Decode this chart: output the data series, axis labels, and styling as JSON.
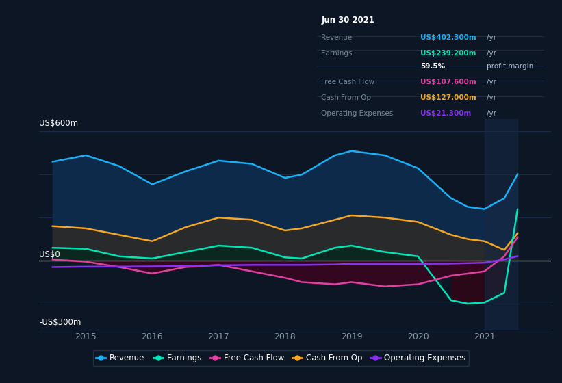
{
  "bg_color": "#0c1624",
  "plot_bg_color": "#0c1624",
  "ylabel_top": "US$600m",
  "ylabel_zero": "US$0",
  "ylabel_bottom": "-US$300m",
  "ylim": [
    -320,
    660
  ],
  "xlim": [
    2014.3,
    2022.0
  ],
  "xticks": [
    2015,
    2016,
    2017,
    2018,
    2019,
    2020,
    2021
  ],
  "colors": {
    "revenue": "#1ab0f5",
    "earnings": "#00e5b8",
    "free_cash_flow": "#e040a0",
    "cash_from_op": "#f5a623",
    "operating_expenses": "#8833ee"
  },
  "x": [
    2014.5,
    2015.0,
    2015.5,
    2016.0,
    2016.5,
    2017.0,
    2017.5,
    2018.0,
    2018.25,
    2018.75,
    2019.0,
    2019.5,
    2020.0,
    2020.5,
    2020.75,
    2021.0,
    2021.3,
    2021.5
  ],
  "revenue": [
    460,
    490,
    440,
    355,
    415,
    465,
    450,
    385,
    400,
    490,
    510,
    490,
    430,
    290,
    250,
    240,
    290,
    402
  ],
  "earnings": [
    60,
    55,
    20,
    10,
    40,
    70,
    60,
    15,
    10,
    60,
    70,
    40,
    20,
    -185,
    -200,
    -195,
    -150,
    239
  ],
  "free_cash_flow": [
    5,
    -5,
    -30,
    -60,
    -30,
    -20,
    -50,
    -80,
    -100,
    -110,
    -100,
    -120,
    -110,
    -70,
    -60,
    -50,
    20,
    108
  ],
  "cash_from_op": [
    160,
    150,
    120,
    90,
    155,
    200,
    190,
    140,
    150,
    190,
    210,
    200,
    180,
    120,
    100,
    90,
    50,
    127
  ],
  "operating_expenses": [
    -30,
    -28,
    -28,
    -27,
    -25,
    -22,
    -20,
    -20,
    -20,
    -18,
    -15,
    -15,
    -15,
    -14,
    -12,
    -10,
    5,
    21
  ],
  "tooltip": {
    "date": "Jun 30 2021",
    "rows": [
      {
        "label": "Revenue",
        "value": "US$402.300m",
        "unit": "/yr",
        "color": "#1ab0f5"
      },
      {
        "label": "Earnings",
        "value": "US$239.200m",
        "unit": "/yr",
        "color": "#00e5b8"
      },
      {
        "label": "",
        "value": "59.5%",
        "unit": "profit margin",
        "color": "#ffffff",
        "bold_value": true
      },
      {
        "label": "Free Cash Flow",
        "value": "US$107.600m",
        "unit": "/yr",
        "color": "#e040a0"
      },
      {
        "label": "Cash From Op",
        "value": "US$127.000m",
        "unit": "/yr",
        "color": "#f5a623"
      },
      {
        "label": "Operating Expenses",
        "value": "US$21.300m",
        "unit": "/yr",
        "color": "#8833ee"
      }
    ]
  },
  "legend": [
    {
      "label": "Revenue",
      "color": "#1ab0f5"
    },
    {
      "label": "Earnings",
      "color": "#00e5b8"
    },
    {
      "label": "Free Cash Flow",
      "color": "#e040a0"
    },
    {
      "label": "Cash From Op",
      "color": "#f5a623"
    },
    {
      "label": "Operating Expenses",
      "color": "#8833ee"
    }
  ],
  "highlight_xstart": 2021.0,
  "highlight_xend": 2021.5
}
